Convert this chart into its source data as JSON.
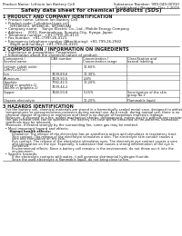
{
  "title": "Safety data sheet for chemical products (SDS)",
  "header_left": "Product Name: Lithium Ion Battery Cell",
  "header_right_line1": "Substance Number: 999-049-00910",
  "header_right_line2": "Established / Revision: Dec.1,2019",
  "section1_title": "1 PRODUCT AND COMPANY IDENTIFICATION",
  "section1_lines": [
    "  • Product name: Lithium Ion Battery Cell",
    "  • Product code: Cylindrical-type cell",
    "      (SR18650U, SR18650L, SR18650A)",
    "  • Company name:    Sanyo Electric Co., Ltd., Mobile Energy Company",
    "  • Address:    2001, Kamimakusa, Sumoto-City, Hyogo, Japan",
    "  • Telephone number:  +81-(799)-26-4111",
    "  • Fax number:  +81-(799)-26-4121",
    "  • Emergency telephone number (After/during): +81-799-26-2942",
    "      (Night and holiday): +81-799-26-4101"
  ],
  "section2_title": "2 COMPOSITION / INFORMATION ON INGREDIENTS",
  "section2_intro": "  • Substance or preparation: Preparation",
  "section2_sub": "  • Information about the chemical nature of product:",
  "table_col_headers": [
    "Component /\nSeveral name",
    "CAS number",
    "Concentration /\nConcentration range",
    "Classification and\nhazard labeling"
  ],
  "table_rows": [
    [
      "Lithium cobalt oxide\n(LiMn/CoO2(x))",
      "-",
      "30-60%",
      "-"
    ],
    [
      "Iron",
      "7439-89-6",
      "10-30%",
      "-"
    ],
    [
      "Aluminum",
      "7429-90-5",
      "2-8%",
      "-"
    ],
    [
      "Graphite\n(Metal in graphite-1)\n(All-Mn in graphite-1)",
      "7782-42-5\n7439-44-2",
      "10-20%",
      "-"
    ],
    [
      "Copper",
      "7440-50-8",
      "5-15%",
      "Sensitization of the skin\ngroup No.2"
    ],
    [
      "Organic electrolyte",
      "-",
      "10-20%",
      "Flammable liquid"
    ]
  ],
  "table_row_heights": [
    8.5,
    4.5,
    4.5,
    11.0,
    8.5,
    4.5
  ],
  "section3_title": "3 HAZARDS IDENTIFICATION",
  "section3_text": [
    "   For the battery cell, chemical materials are stored in a hermetically sealed metal case, designed to withstand",
    "   temperatures or pressures/stress-corrosion during normal use. As a result, during normal use, there is no",
    "   physical danger of ignition or explosion and there is no danger of hazardous materials leakage.",
    "   However, if exposed to a fire, added mechanical shocks, decomposed, enters electric without any resistance,",
    "   the gas release vent can be operated. The battery cell case will be breached at fire-patterns, hazardous",
    "   materials may be released.",
    "   Moreover, if heated strongly by the surrounding fire, some gas may be emitted."
  ],
  "section3_effects_title": "  • Most important hazard and effects:",
  "section3_human": "      Human health effects:",
  "section3_human_details": [
    "         Inhalation: The release of the electrolyte has an anesthesia action and stimulates in respiratory tract.",
    "         Skin contact: The release of the electrolyte stimulates a skin. The electrolyte skin contact causes a",
    "         sore and stimulation on the skin.",
    "         Eye contact: The release of the electrolyte stimulates eyes. The electrolyte eye contact causes a sore",
    "         and stimulation on the eye. Especially, a substance that causes a strong inflammation of the eye is",
    "         contained.",
    "         Environmental effects: Since a battery cell remains in the environment, do not throw out it into the",
    "         environment."
  ],
  "section3_specific": "  • Specific hazards:",
  "section3_specific_details": [
    "         If the electrolyte contacts with water, it will generate detrimental hydrogen fluoride.",
    "         Since the used electrolyte is flammable liquid, do not bring close to fire."
  ],
  "bg_color": "#ffffff",
  "text_color": "#1a1a1a",
  "line_color": "#555555",
  "table_border_color": "#777777"
}
